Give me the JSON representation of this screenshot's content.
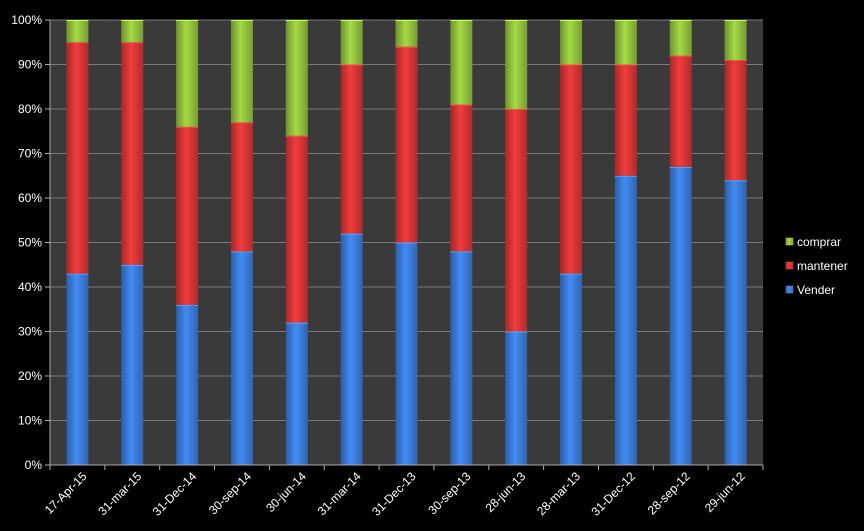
{
  "chart_data": {
    "type": "bar",
    "stacked": true,
    "percent": true,
    "categories": [
      "17-Apr-15",
      "31-mar-15",
      "31-Dec-14",
      "30-sep-14",
      "30-jun-14",
      "31-mar-14",
      "31-Dec-13",
      "30-sep-13",
      "28-jun-13",
      "28-mar-13",
      "31-Dec-12",
      "28-sep-12",
      "29-jun-12"
    ],
    "series": [
      {
        "name": "Vender",
        "color": "#3c7ddc",
        "values": [
          43,
          45,
          36,
          48,
          32,
          52,
          50,
          48,
          30,
          43,
          65,
          67,
          64
        ]
      },
      {
        "name": "mantener",
        "color": "#d93636",
        "values": [
          52,
          50,
          40,
          29,
          42,
          38,
          44,
          33,
          50,
          47,
          25,
          25,
          27
        ]
      },
      {
        "name": "comprar",
        "color": "#93c33e",
        "values": [
          5,
          5,
          24,
          23,
          26,
          10,
          6,
          19,
          20,
          10,
          10,
          8,
          9
        ]
      }
    ],
    "legend_order": [
      "comprar",
      "mantener",
      "Vender"
    ],
    "ylim": [
      0,
      100
    ],
    "yticks": [
      "0%",
      "10%",
      "20%",
      "30%",
      "40%",
      "50%",
      "60%",
      "70%",
      "80%",
      "90%",
      "100%"
    ],
    "grid": true,
    "legend_position": "right",
    "plot_background": "#3a3a3a",
    "gridline_color": "#7a7a7a"
  }
}
